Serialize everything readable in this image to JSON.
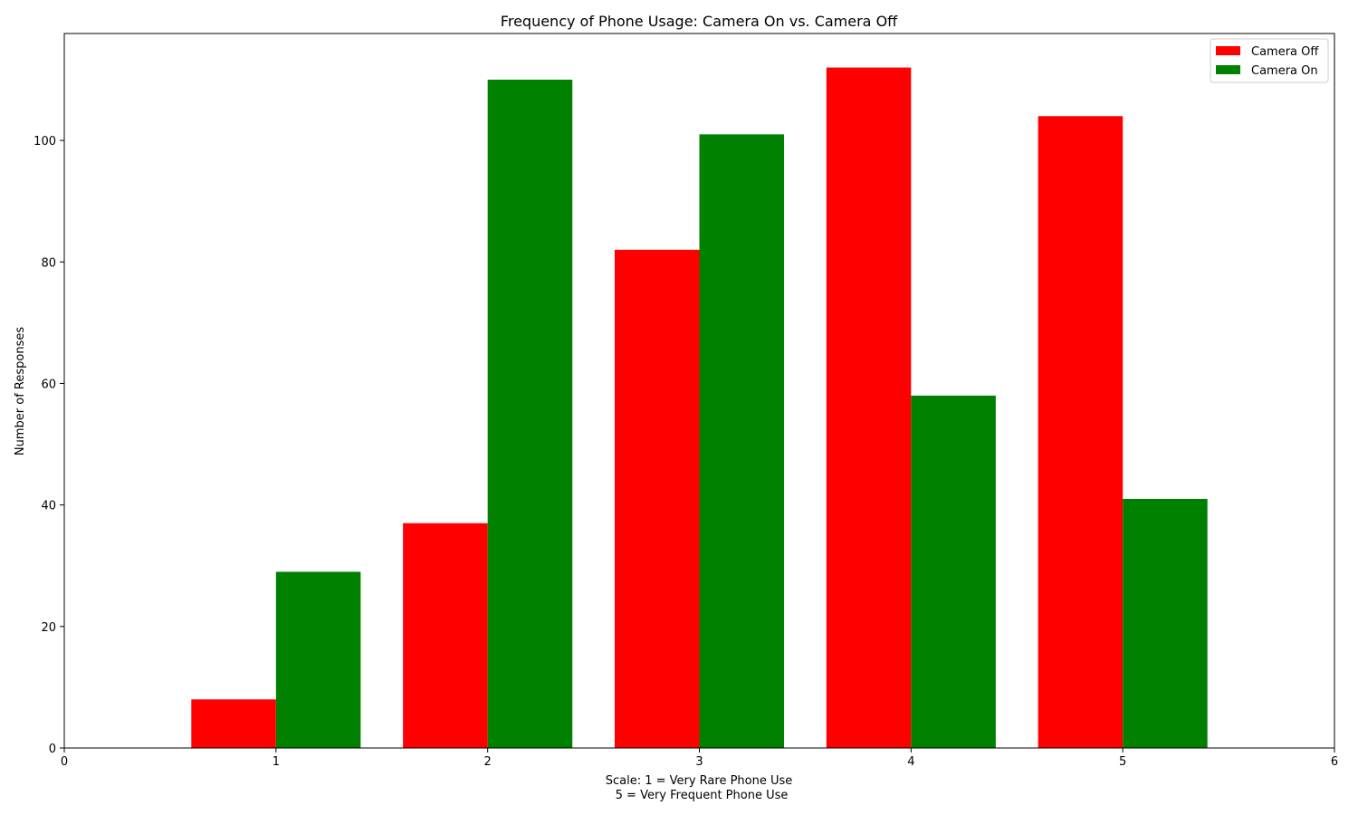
{
  "chart_data": {
    "type": "bar",
    "title": "Frequency of Phone Usage: Camera On vs. Camera Off",
    "xlabel": "Scale: 1 = Very Rare Phone Use",
    "xlabel_line2": "5 = Very Frequent Phone Use",
    "ylabel": "Number of Responses",
    "categories": [
      1,
      2,
      3,
      4,
      5
    ],
    "xlim": [
      0,
      6
    ],
    "ylim": [
      0,
      117.6
    ],
    "xticks": [
      "0",
      "1",
      "2",
      "3",
      "4",
      "5",
      "6"
    ],
    "yticks": [
      "0",
      "20",
      "40",
      "60",
      "80",
      "100"
    ],
    "grid": false,
    "legend_position": "top-right",
    "series": [
      {
        "name": "Camera Off",
        "color": "#ff0000",
        "values": [
          8,
          37,
          82,
          112,
          104
        ]
      },
      {
        "name": "Camera On",
        "color": "#008000",
        "values": [
          29,
          110,
          101,
          58,
          41
        ]
      }
    ]
  }
}
